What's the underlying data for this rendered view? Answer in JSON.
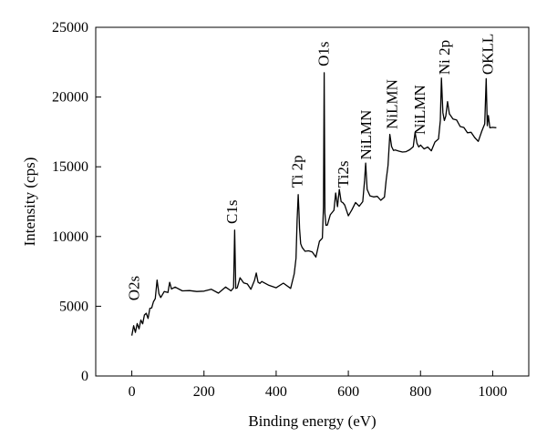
{
  "chart_data": {
    "type": "line",
    "title": "",
    "xlabel": "Binding energy (eV)",
    "ylabel": "Intensity (cps)",
    "xlim": [
      -100,
      1100
    ],
    "ylim": [
      0,
      25000
    ],
    "x_ticks": [
      0,
      200,
      400,
      600,
      800,
      1000
    ],
    "y_ticks": [
      0,
      5000,
      10000,
      15000,
      20000,
      25000
    ],
    "grid": false,
    "series": [
      {
        "color": "#000000",
        "x": [
          0,
          5,
          10,
          15,
          20,
          25,
          30,
          35,
          40,
          45,
          50,
          55,
          60,
          65,
          70,
          75,
          80,
          90,
          100,
          105,
          110,
          120,
          140,
          160,
          180,
          200,
          220,
          240,
          260,
          275,
          282,
          285,
          288,
          292,
          300,
          310,
          320,
          330,
          340,
          345,
          350,
          355,
          360,
          380,
          400,
          420,
          440,
          450,
          455,
          458,
          461,
          463,
          465,
          468,
          472,
          480,
          490,
          500,
          510,
          520,
          528,
          531,
          533,
          535,
          538,
          542,
          550,
          560,
          565,
          570,
          575,
          580,
          585,
          590,
          600,
          610,
          620,
          630,
          640,
          645,
          648,
          652,
          660,
          670,
          680,
          690,
          700,
          705,
          710,
          715,
          720,
          725,
          730,
          740,
          750,
          760,
          770,
          780,
          785,
          790,
          795,
          800,
          810,
          820,
          830,
          840,
          850,
          855,
          858,
          862,
          866,
          870,
          875,
          880,
          890,
          900,
          910,
          920,
          930,
          940,
          950,
          960,
          970,
          978,
          982,
          985,
          988,
          992,
          1000,
          1010
        ],
        "y": [
          2900,
          3600,
          3300,
          3700,
          3500,
          3900,
          3800,
          4200,
          4500,
          4300,
          4800,
          5000,
          5200,
          5600,
          6700,
          5900,
          5800,
          6000,
          6100,
          6600,
          6300,
          6200,
          6100,
          6300,
          6000,
          6200,
          6100,
          6000,
          6200,
          6100,
          6500,
          10400,
          6400,
          6200,
          7100,
          6500,
          6600,
          6400,
          6800,
          7500,
          6600,
          6700,
          6600,
          6500,
          6500,
          6600,
          6400,
          7200,
          8500,
          11000,
          13000,
          12000,
          10500,
          9600,
          9100,
          9000,
          8800,
          8900,
          8700,
          9600,
          10000,
          12000,
          21800,
          11500,
          10800,
          11000,
          11500,
          12000,
          13000,
          12200,
          13200,
          12500,
          12600,
          12200,
          11600,
          11800,
          12500,
          12000,
          12500,
          14200,
          15200,
          13500,
          12800,
          12900,
          12700,
          12600,
          13000,
          14000,
          15200,
          17200,
          16500,
          16000,
          16200,
          16300,
          16000,
          16200,
          16100,
          16500,
          17300,
          16700,
          16600,
          16500,
          16400,
          16300,
          16200,
          16600,
          17000,
          18500,
          21300,
          19000,
          18200,
          18700,
          19500,
          18800,
          18600,
          18300,
          18000,
          17700,
          17500,
          17300,
          17100,
          17000,
          17500,
          18200,
          21200,
          18000,
          18500,
          17800,
          18000,
          17800
        ]
      }
    ],
    "annotations": [
      {
        "text": "O2s",
        "x": 20,
        "y": 5400,
        "rotation": -90
      },
      {
        "text": "C1s",
        "x": 292,
        "y": 10900,
        "rotation": -90
      },
      {
        "text": "Ti 2p",
        "x": 472,
        "y": 13500,
        "rotation": -90
      },
      {
        "text": "O1s",
        "x": 545,
        "y": 22200,
        "rotation": -90
      },
      {
        "text": "Ti2s",
        "x": 600,
        "y": 13500,
        "rotation": -90
      },
      {
        "text": "NiLMN",
        "x": 663,
        "y": 15500,
        "rotation": -90
      },
      {
        "text": "NiLMN",
        "x": 735,
        "y": 17700,
        "rotation": -90
      },
      {
        "text": "NiLMN",
        "x": 812,
        "y": 17300,
        "rotation": -90
      },
      {
        "text": "Ni 2p",
        "x": 880,
        "y": 21600,
        "rotation": -90
      },
      {
        "text": "OKLL",
        "x": 1000,
        "y": 21600,
        "rotation": -90
      }
    ]
  }
}
